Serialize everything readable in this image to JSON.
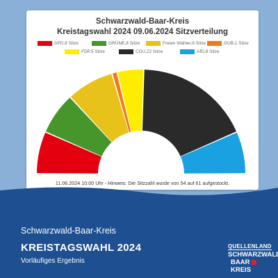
{
  "chart_data": {
    "type": "parliament",
    "title": "Schwarzwald-Baar-Kreis",
    "subtitle": "Kreistagswahl 2024 09.06.2024 Sitzverteilung",
    "total_seats": 61,
    "series": [
      {
        "name": "SPD",
        "label": "SPD,8 Sitze",
        "value": 8,
        "color": "#e3000f"
      },
      {
        "name": "GRÜNE",
        "label": "GRÜNE,8 Sitze",
        "value": 8,
        "color": "#46962b"
      },
      {
        "name": "Freien Wähler",
        "label": "Freien Wähler,9 Sitze",
        "value": 9,
        "color": "#e6c21a"
      },
      {
        "name": "GUB",
        "label": "GUB,1 Sitze",
        "value": 1,
        "color": "#f07a1a"
      },
      {
        "name": "FDP",
        "label": "FDP,5 Sitze",
        "value": 5,
        "color": "#ffed00"
      },
      {
        "name": "CDU",
        "label": "CDU,22 Sitze",
        "value": 22,
        "color": "#2a2a2a"
      },
      {
        "name": "AfD",
        "label": "AfD,8 Sitze",
        "value": 8,
        "color": "#1aa1e2"
      }
    ],
    "legend_position": "top",
    "footnote": "11.06.2024 10:00 Uhr - Hinweis: Die Sitzzahl wurde von 54 auf 61 aufgestockt."
  },
  "banner": {
    "region": "Schwarzwald-Baar-Kreis",
    "headline": "KREISTAGSWAHL 2024",
    "subline": "Vorläufiges Ergebnis"
  },
  "logo": {
    "line1": "QUELLENLAND",
    "line2": "SCHWARZWALD",
    "line3": "BAAR",
    "line4": "KREIS"
  }
}
